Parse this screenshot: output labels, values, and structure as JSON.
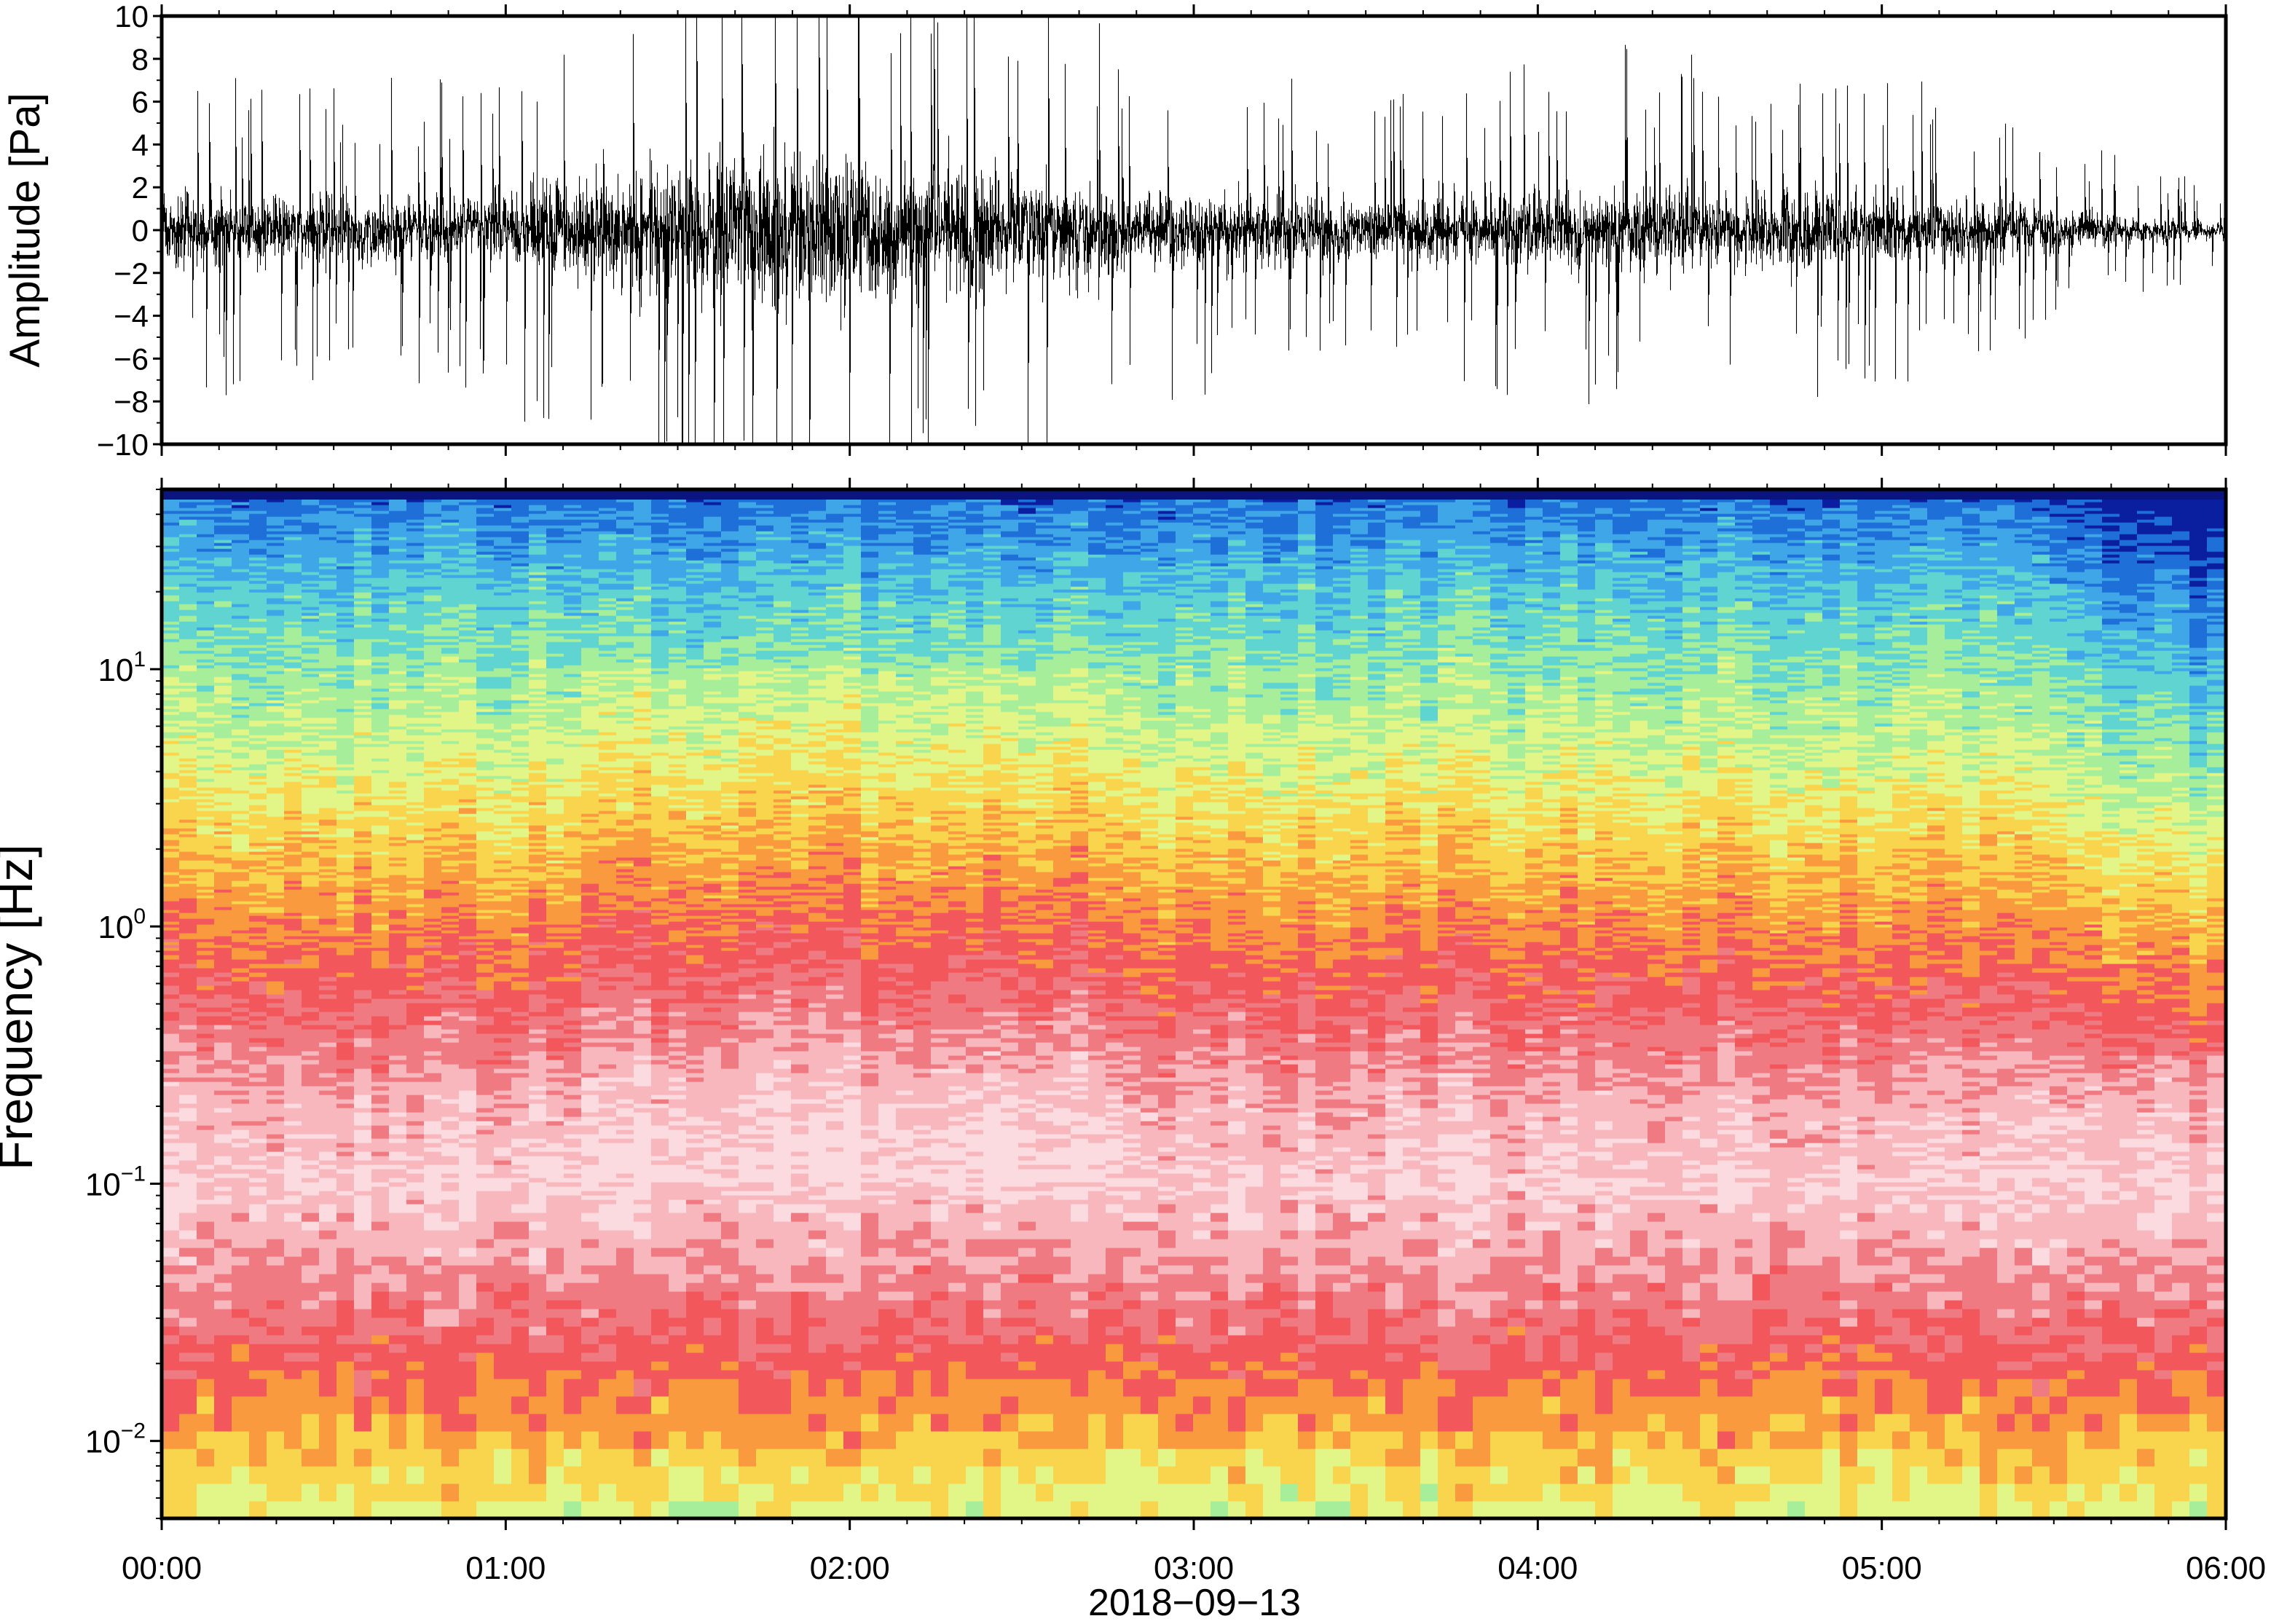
{
  "chart_data": [
    {
      "type": "line",
      "panel": "waveform",
      "ylabel": "Amplitude [Pa]",
      "xlabel": "",
      "xlim": [
        "00:00",
        "06:00"
      ],
      "ylim": [
        -10,
        10
      ],
      "yticks": [
        10,
        8,
        6,
        4,
        2,
        0,
        -2,
        -4,
        -6,
        -8,
        -10
      ],
      "ytick_labels": [
        "10",
        "8",
        "6",
        "4",
        "2",
        "0",
        "−2",
        "−4",
        "−6",
        "−8",
        "−10"
      ],
      "color": "#000000",
      "envelope": {
        "time_h": [
          0.0,
          0.25,
          0.5,
          0.75,
          1.0,
          1.25,
          1.5,
          1.75,
          2.0,
          2.25,
          2.5,
          2.75,
          3.0,
          3.25,
          3.5,
          3.75,
          4.0,
          4.25,
          4.5,
          4.75,
          5.0,
          5.25,
          5.5,
          5.75,
          6.0
        ],
        "half_width_pa": [
          2.5,
          2.6,
          2.5,
          2.4,
          2.8,
          3.8,
          5.0,
          6.0,
          5.3,
          4.6,
          4.3,
          3.3,
          2.7,
          2.4,
          2.2,
          2.4,
          2.8,
          3.0,
          2.8,
          2.7,
          2.5,
          2.2,
          1.6,
          1.0,
          0.7
        ]
      }
    },
    {
      "type": "heatmap",
      "panel": "spectrogram",
      "ylabel": "Frequency [Hz]",
      "xlabel": "2018−09−13",
      "xlim": [
        "00:00",
        "06:00"
      ],
      "xticks": [
        "00:00",
        "01:00",
        "02:00",
        "03:00",
        "04:00",
        "05:00",
        "06:00"
      ],
      "yscale": "log",
      "ylim": [
        0.005,
        50
      ],
      "yticks": [
        10,
        1,
        0.1,
        0.01
      ],
      "ytick_labels": [
        {
          "base": "10",
          "exp": "1"
        },
        {
          "base": "10",
          "exp": "0"
        },
        {
          "base": "10",
          "exp": "−1"
        },
        {
          "base": "10",
          "exp": "−2"
        }
      ],
      "colormap": [
        "#0a1fa0",
        "#1e6fd8",
        "#3fa6e8",
        "#5fd4d0",
        "#a6ee9a",
        "#e2f587",
        "#f9d44d",
        "#f99a3f",
        "#f2585b",
        "#f07a82",
        "#f8b7bd",
        "#fcdbe0"
      ],
      "band_profile": {
        "freq_hz": [
          0.005,
          0.008,
          0.012,
          0.02,
          0.03,
          0.05,
          0.1,
          0.2,
          0.5,
          1,
          2,
          5,
          10,
          20,
          50
        ],
        "level": [
          5,
          6,
          7,
          8,
          8.8,
          9.6,
          10.6,
          10.0,
          8.4,
          7.3,
          6.2,
          4.7,
          3.8,
          2.8,
          1.0
        ]
      }
    }
  ]
}
